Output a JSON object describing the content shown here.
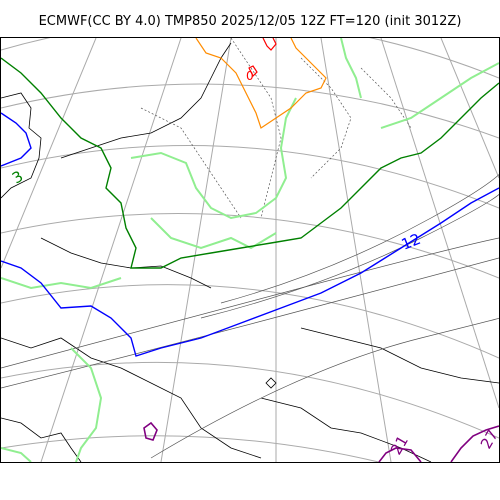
{
  "title": "ECMWF(CC BY 4.0) TMP850 2025/12/05 12Z FT=120 (init 3012Z)",
  "colors": {
    "coast": "#000000",
    "grid": "#aaaaaa",
    "height_contour": "#555555",
    "precip": "#90ee90",
    "iso_minus": "#008000",
    "iso_zero": "#0000ff",
    "iso_warm": "#ff8c00",
    "iso_hot": "#ff0000",
    "iso_cold": "#800080"
  },
  "contour_labels": {
    "blue": "12",
    "green": "3",
    "red": "0",
    "purple_1": "21",
    "purple_2": "27"
  }
}
